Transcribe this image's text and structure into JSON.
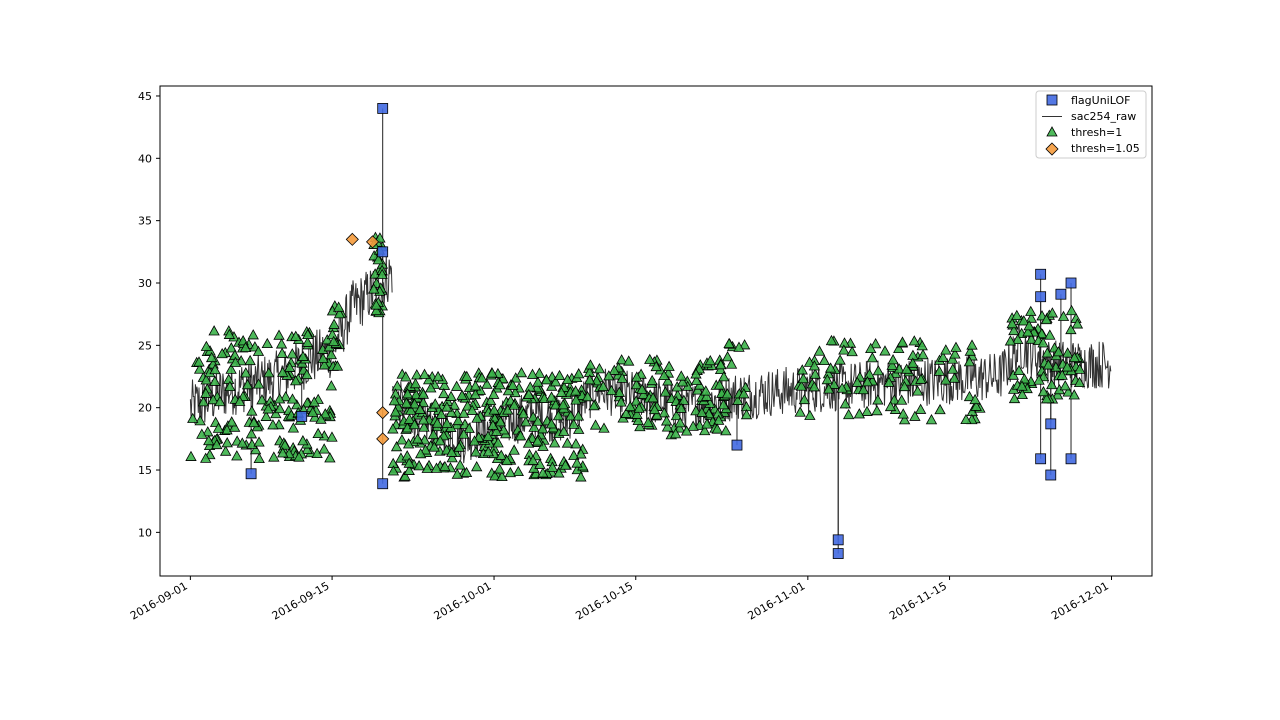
{
  "chart_data": {
    "type": "scatter",
    "title": "",
    "xlabel": "",
    "ylabel": "",
    "x_axis": {
      "kind": "date",
      "range": [
        "2016-08-29",
        "2016-12-05"
      ],
      "ticks": [
        "2016-09-01",
        "2016-09-15",
        "2016-10-01",
        "2016-10-15",
        "2016-11-01",
        "2016-11-15",
        "2016-12-01"
      ]
    },
    "y_axis": {
      "range": [
        6.5,
        45.8
      ],
      "ticks": [
        10,
        15,
        20,
        25,
        30,
        35,
        40,
        45
      ]
    },
    "grid": false,
    "legend_position": "top-right",
    "legend": [
      {
        "label": "flagUniLOF",
        "marker": "square",
        "color": "#4169E1"
      },
      {
        "label": "sac254_raw",
        "marker": "line",
        "color": "#333333"
      },
      {
        "label": "thresh=1",
        "marker": "triangle",
        "color": "#3CB34A"
      },
      {
        "label": "thresh=1.05",
        "marker": "diamond",
        "color": "#F59B3C"
      }
    ],
    "series": [
      {
        "name": "sac254_raw",
        "style": "line",
        "color": "#333333",
        "segments": [
          {
            "x": [
              "2016-09-01",
              "2016-09-05",
              "2016-09-10",
              "2016-09-13",
              "2016-09-15",
              "2016-09-17",
              "2016-09-20",
              "2016-09-21"
            ],
            "y": [
              20.0,
              21.5,
              22.5,
              24.0,
              24.5,
              28.0,
              30.0,
              31.0
            ],
            "noise": 2.2
          },
          {
            "x": [
              "2016-09-21",
              "2016-09-24",
              "2016-09-28",
              "2016-10-01",
              "2016-10-05",
              "2016-10-08",
              "2016-10-11",
              "2016-10-15",
              "2016-10-20",
              "2016-10-25",
              "2016-11-01",
              "2016-11-10",
              "2016-11-20",
              "2016-11-22",
              "2016-11-25",
              "2016-12-01"
            ],
            "y": [
              20.5,
              19.0,
              17.5,
              18.5,
              19.5,
              19.0,
              21.5,
              21.0,
              20.0,
              21.0,
              21.5,
              22.0,
              22.5,
              25.0,
              23.5,
              23.5
            ],
            "noise": 2.0
          }
        ]
      },
      {
        "name": "flagUniLOF",
        "style": "scatter",
        "marker": "square",
        "color": "#4169E1",
        "points": [
          {
            "x": "2016-09-07",
            "y": 14.7
          },
          {
            "x": "2016-09-12",
            "y": 19.3
          },
          {
            "x": "2016-09-20",
            "y": 44.0
          },
          {
            "x": "2016-09-20",
            "y": 32.5
          },
          {
            "x": "2016-09-20",
            "y": 13.9
          },
          {
            "x": "2016-10-25",
            "y": 17.0
          },
          {
            "x": "2016-11-04",
            "y": 9.4
          },
          {
            "x": "2016-11-04",
            "y": 8.3
          },
          {
            "x": "2016-11-24",
            "y": 15.9
          },
          {
            "x": "2016-11-24",
            "y": 30.7
          },
          {
            "x": "2016-11-24",
            "y": 28.9
          },
          {
            "x": "2016-11-25",
            "y": 18.7
          },
          {
            "x": "2016-11-25",
            "y": 14.6
          },
          {
            "x": "2016-11-26",
            "y": 29.1
          },
          {
            "x": "2016-11-27",
            "y": 30.0
          },
          {
            "x": "2016-11-27",
            "y": 15.9
          }
        ]
      },
      {
        "name": "thresh=1.05",
        "style": "scatter",
        "marker": "diamond",
        "color": "#F59B3C",
        "points": [
          {
            "x": "2016-09-17",
            "y": 33.5
          },
          {
            "x": "2016-09-19",
            "y": 33.3
          },
          {
            "x": "2016-09-20",
            "y": 19.6
          },
          {
            "x": "2016-09-20",
            "y": 17.5
          }
        ]
      },
      {
        "name": "thresh=1",
        "style": "scatter",
        "marker": "triangle",
        "color": "#3CB34A",
        "clusters": [
          {
            "x_from": "2016-09-01",
            "x_to": "2016-09-15",
            "y_from": 15.9,
            "y_to": 26.2,
            "count": 190
          },
          {
            "x_from": "2016-09-15",
            "x_to": "2016-09-16",
            "y_from": 23.3,
            "y_to": 28.4,
            "count": 15
          },
          {
            "x_from": "2016-09-19",
            "x_to": "2016-09-20",
            "y_from": 27.5,
            "y_to": 34.0,
            "count": 28
          },
          {
            "x_from": "2016-09-21",
            "x_to": "2016-10-10",
            "y_from": 14.4,
            "y_to": 22.8,
            "count": 330
          },
          {
            "x_from": "2016-10-10",
            "x_to": "2016-10-24",
            "y_from": 17.8,
            "y_to": 24.0,
            "count": 140
          },
          {
            "x_from": "2016-10-24",
            "x_to": "2016-10-26",
            "y_from": 19.4,
            "y_to": 25.6,
            "count": 14
          },
          {
            "x_from": "2016-10-31",
            "x_to": "2016-11-18",
            "y_from": 19.0,
            "y_to": 25.4,
            "count": 110
          },
          {
            "x_from": "2016-11-21",
            "x_to": "2016-11-28",
            "y_from": 20.6,
            "y_to": 27.8,
            "count": 85
          }
        ]
      }
    ]
  }
}
